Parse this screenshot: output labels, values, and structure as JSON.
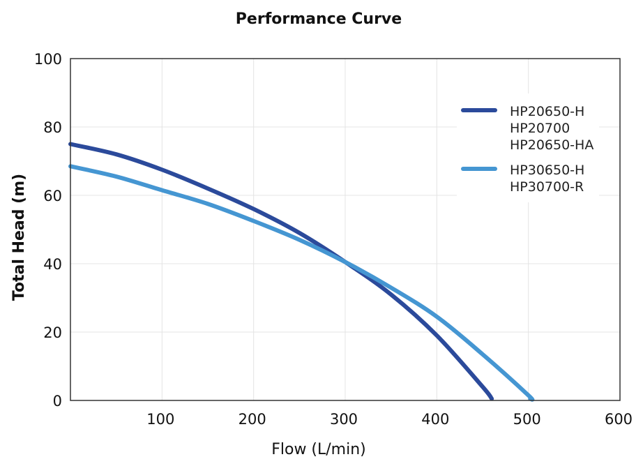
{
  "chart_data": {
    "type": "line",
    "title": "Performance Curve",
    "xlabel": "Flow (L/min)",
    "ylabel": "Total Head (m)",
    "xlim": [
      0,
      600
    ],
    "ylim": [
      0,
      100
    ],
    "x_ticks": [
      "100",
      "200",
      "300",
      "400",
      "500",
      "600"
    ],
    "y_ticks": [
      "0",
      "20",
      "40",
      "60",
      "80",
      "100"
    ],
    "grid": true,
    "legend_position": "top-right",
    "series": [
      {
        "name": "HP20650-H HP20700 HP20650-HA",
        "legend_lines": [
          "HP20650-H",
          "HP20700",
          "HP20650-HA"
        ],
        "color": "#2b4a9b",
        "x": [
          0,
          50,
          100,
          150,
          200,
          250,
          300,
          350,
          400,
          450,
          460
        ],
        "y": [
          75,
          72,
          67.5,
          62,
          56,
          49,
          40.5,
          31,
          19,
          4,
          0.5
        ]
      },
      {
        "name": "HP30650-H HP30700-R",
        "legend_lines": [
          "HP30650-H",
          "HP30700-R"
        ],
        "color": "#4596d2",
        "x": [
          0,
          50,
          100,
          150,
          200,
          250,
          300,
          350,
          400,
          450,
          500,
          502
        ],
        "y": [
          68.5,
          65.5,
          61.5,
          57.5,
          52.5,
          47,
          40.5,
          33,
          24.5,
          13.5,
          1.5,
          0.5
        ]
      }
    ]
  }
}
